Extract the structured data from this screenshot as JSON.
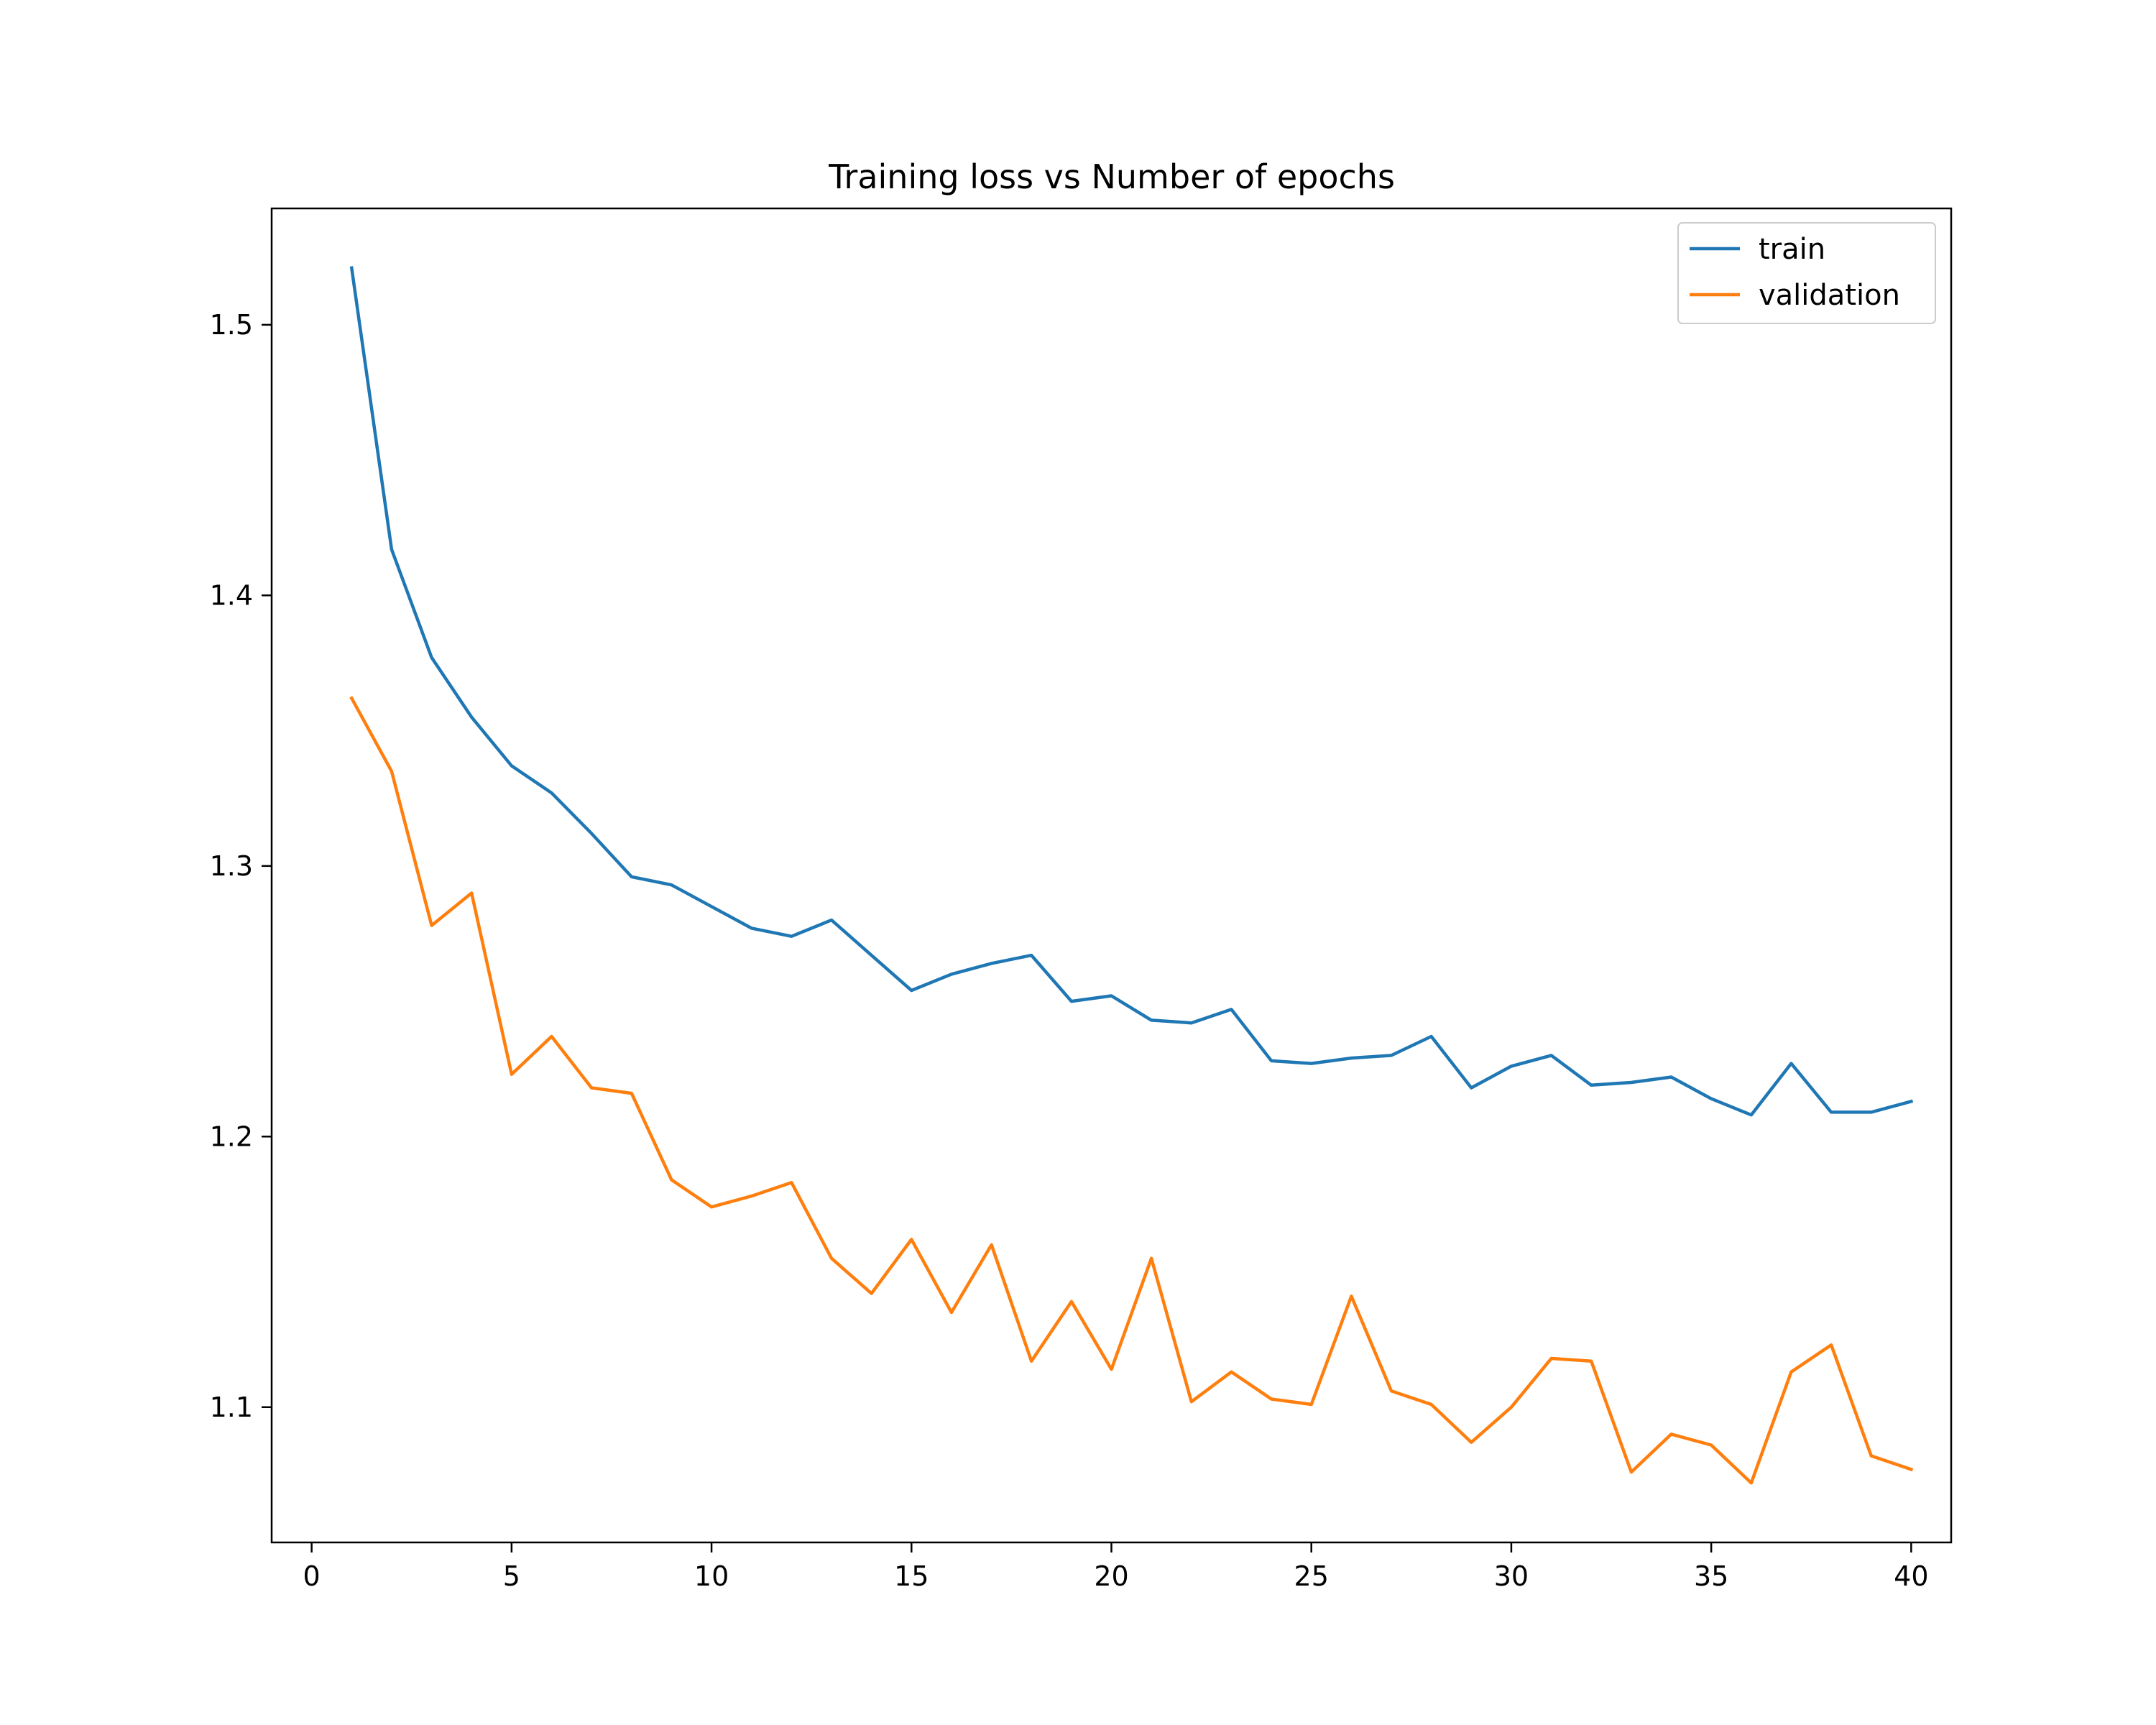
{
  "colors": {
    "train": "#1f77b4",
    "validation": "#ff7f0e",
    "axes": "#000000",
    "background": "#ffffff",
    "legend_border": "#cccccc"
  },
  "chart_data": {
    "type": "line",
    "title": "Training loss vs Number of epochs",
    "xlabel": "",
    "ylabel": "",
    "xlim": [
      -1,
      41
    ],
    "ylim": [
      1.05,
      1.543
    ],
    "grid": false,
    "legend_position": "top-right",
    "x_ticks": [
      0,
      5,
      10,
      15,
      20,
      25,
      30,
      35,
      40
    ],
    "x_tick_labels": [
      "0",
      "5",
      "10",
      "15",
      "20",
      "25",
      "30",
      "35",
      "40"
    ],
    "y_ticks": [
      1.1,
      1.2,
      1.3,
      1.4,
      1.5
    ],
    "y_tick_labels": [
      "1.1",
      "1.2",
      "1.3",
      "1.4",
      "1.5"
    ],
    "x": [
      1,
      2,
      3,
      4,
      5,
      6,
      7,
      8,
      9,
      10,
      11,
      12,
      13,
      14,
      15,
      16,
      17,
      18,
      19,
      20,
      21,
      22,
      23,
      24,
      25,
      26,
      27,
      28,
      29,
      30,
      31,
      32,
      33,
      34,
      35,
      36,
      37,
      38,
      39,
      40
    ],
    "series": [
      {
        "name": "train",
        "values": [
          1.521,
          1.417,
          1.377,
          1.355,
          1.337,
          1.327,
          1.312,
          1.296,
          1.293,
          1.285,
          1.277,
          1.274,
          1.28,
          1.267,
          1.254,
          1.26,
          1.264,
          1.267,
          1.25,
          1.252,
          1.243,
          1.242,
          1.247,
          1.228,
          1.227,
          1.229,
          1.23,
          1.237,
          1.218,
          1.226,
          1.23,
          1.219,
          1.22,
          1.222,
          1.214,
          1.208,
          1.227,
          1.209,
          1.209,
          1.213
        ]
      },
      {
        "name": "validation",
        "values": [
          1.362,
          1.335,
          1.278,
          1.29,
          1.223,
          1.237,
          1.218,
          1.216,
          1.184,
          1.174,
          1.178,
          1.183,
          1.155,
          1.142,
          1.162,
          1.135,
          1.16,
          1.117,
          1.139,
          1.114,
          1.155,
          1.102,
          1.113,
          1.103,
          1.101,
          1.141,
          1.106,
          1.101,
          1.087,
          1.1,
          1.118,
          1.117,
          1.076,
          1.09,
          1.086,
          1.072,
          1.113,
          1.123,
          1.082,
          1.077
        ]
      }
    ]
  }
}
